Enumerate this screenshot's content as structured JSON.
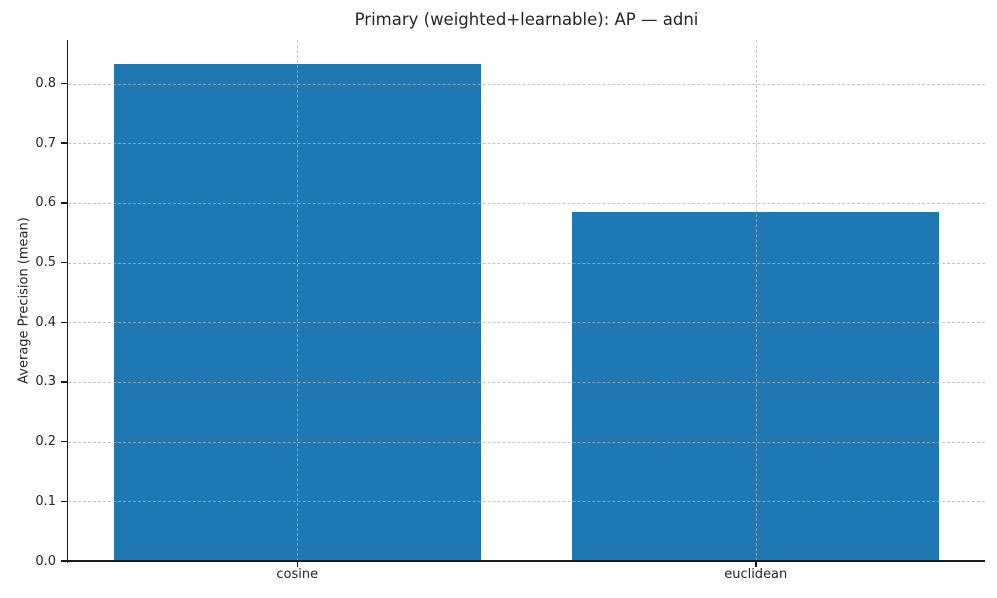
{
  "chart_data": {
    "type": "bar",
    "title": "Primary (weighted+learnable): AP — adni",
    "categories": [
      "cosine",
      "euclidean"
    ],
    "values": [
      0.833,
      0.585
    ],
    "xlabel": "",
    "ylabel": "Average Precision (mean)",
    "ylim": [
      0,
      0.873
    ],
    "yticks": [
      0.0,
      0.1,
      0.2,
      0.3,
      0.4,
      0.5,
      0.6,
      0.7,
      0.8
    ],
    "ytick_labels": [
      "0.0",
      "0.1",
      "0.2",
      "0.3",
      "0.4",
      "0.5",
      "0.6",
      "0.7",
      "0.8"
    ],
    "bar_color": "#1f77b4",
    "bar_width_fraction": 0.4,
    "grid": {
      "visible": true,
      "linestyle": "dashed",
      "color": "#b0b0b0",
      "alpha": 0.75,
      "above_bars": true,
      "axes": "both"
    },
    "legend": null,
    "spines": [
      "left",
      "bottom"
    ]
  }
}
